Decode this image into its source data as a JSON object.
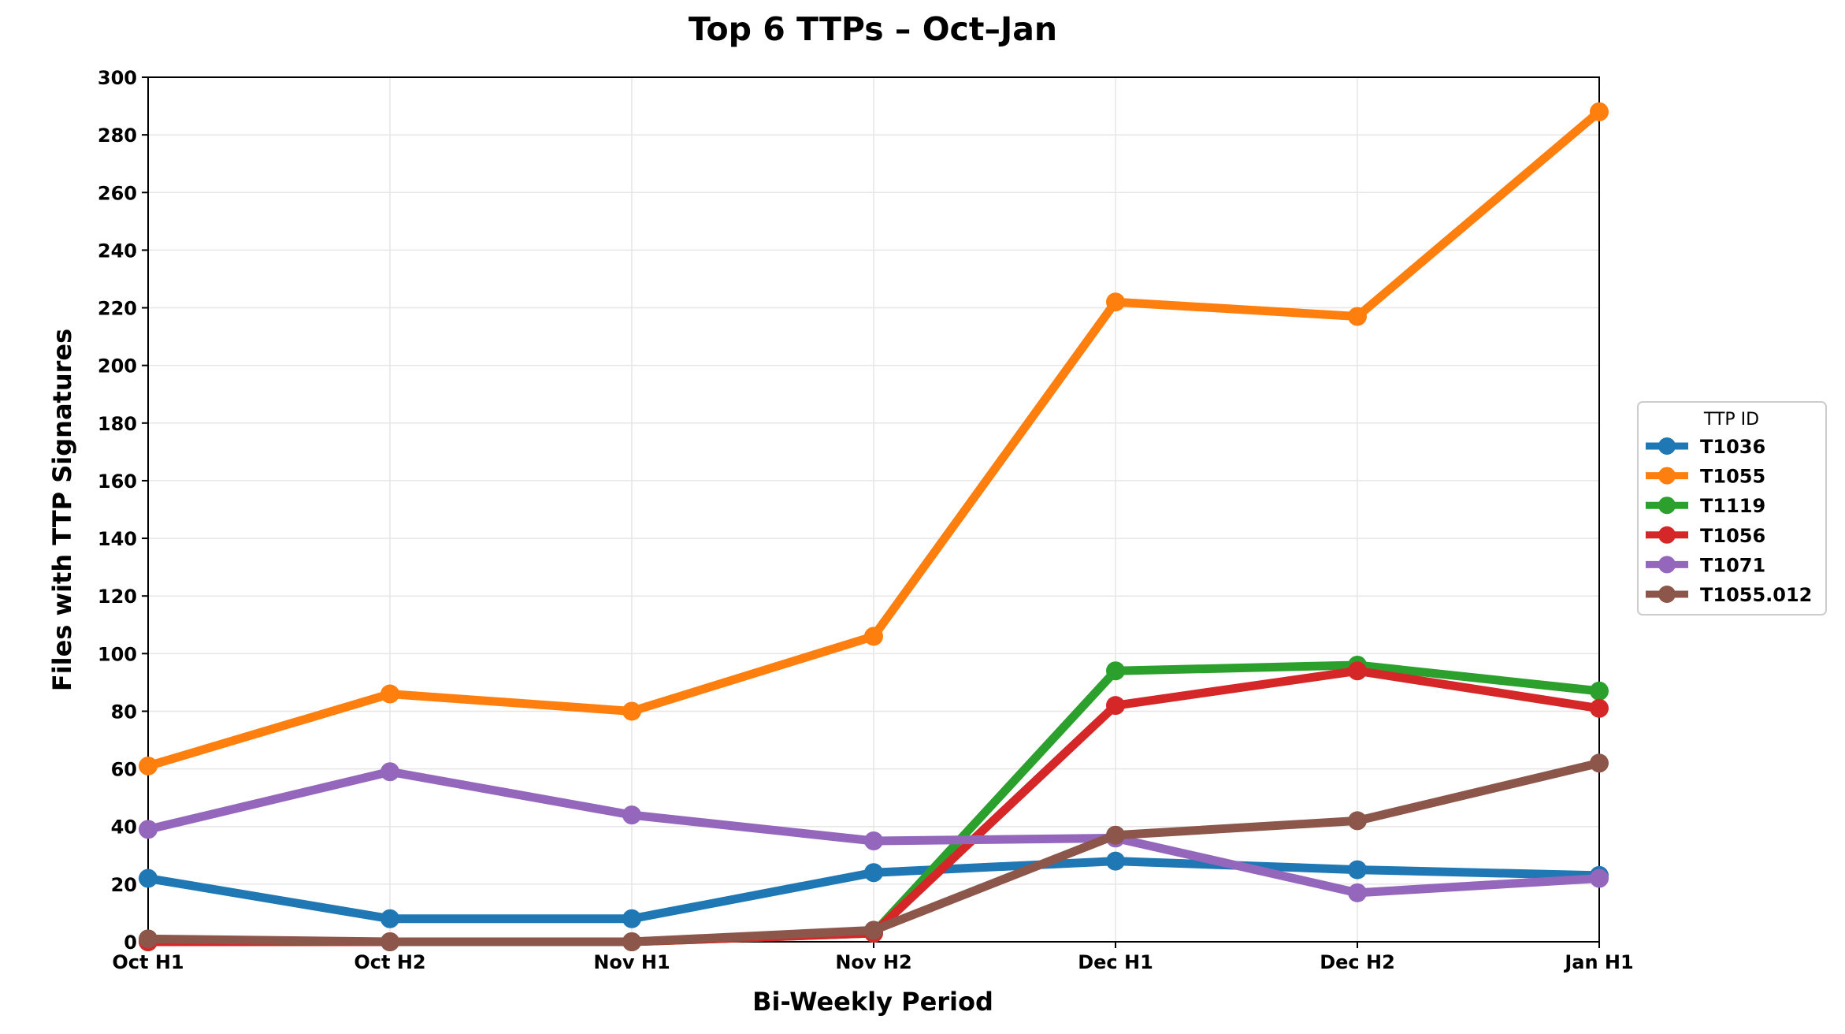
{
  "chart_data": {
    "type": "line",
    "title": "Top 6 TTPs – Oct–Jan",
    "xlabel": "Bi-Weekly Period",
    "ylabel": "Files with TTP Signatures",
    "categories": [
      "Oct H1",
      "Oct H2",
      "Nov H1",
      "Nov H2",
      "Dec H1",
      "Dec H2",
      "Jan H1"
    ],
    "ylim": [
      0,
      300
    ],
    "yticks": [
      0,
      20,
      40,
      60,
      80,
      100,
      120,
      140,
      160,
      180,
      200,
      220,
      240,
      260,
      280,
      300
    ],
    "grid": true,
    "legend": {
      "title": "TTP ID",
      "placement": "right-center outside"
    },
    "series": [
      {
        "name": "T1036",
        "color": "#1f77b4",
        "values": [
          22,
          8,
          8,
          24,
          28,
          25,
          23
        ]
      },
      {
        "name": "T1055",
        "color": "#ff7f0e",
        "values": [
          61,
          86,
          80,
          106,
          222,
          217,
          288
        ]
      },
      {
        "name": "T1119",
        "color": "#2ca02c",
        "values": [
          0,
          0,
          0,
          3,
          94,
          96,
          87
        ]
      },
      {
        "name": "T1056",
        "color": "#d62728",
        "values": [
          0,
          0,
          0,
          3,
          82,
          94,
          81
        ]
      },
      {
        "name": "T1071",
        "color": "#9467bd",
        "values": [
          39,
          59,
          44,
          35,
          36,
          17,
          22
        ]
      },
      {
        "name": "T1055.012",
        "color": "#8c564b",
        "values": [
          1,
          0,
          0,
          4,
          37,
          42,
          62
        ]
      }
    ]
  }
}
